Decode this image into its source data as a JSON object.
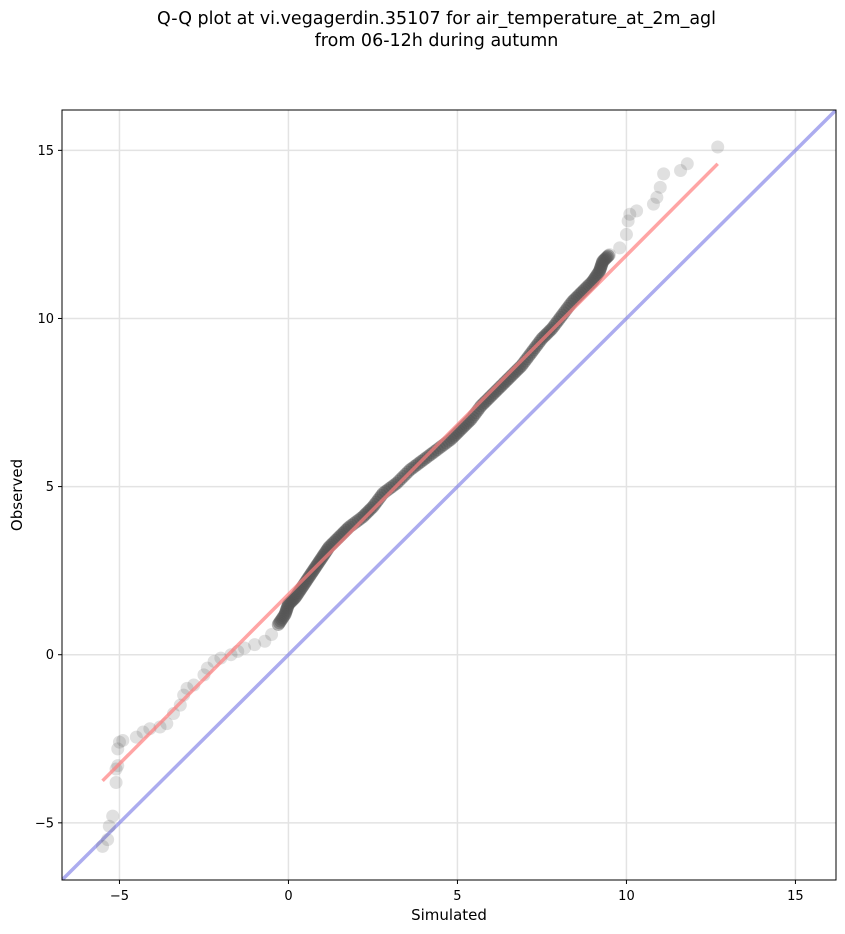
{
  "chart_data": {
    "type": "scatter",
    "title_line1": "Q-Q plot at vi.vegagerdin.35107 for air_temperature_at_2m_agl",
    "title_line2": "from 06-12h during autumn",
    "xlabel": "Simulated",
    "ylabel": "Observed",
    "xlim": [
      -6.7,
      16.2
    ],
    "ylim": [
      -6.7,
      16.2
    ],
    "xticks": [
      -5,
      0,
      5,
      10,
      15
    ],
    "yticks": [
      -5,
      0,
      5,
      10,
      15
    ],
    "xtick_labels": [
      "−5",
      "0",
      "5",
      "10",
      "15"
    ],
    "ytick_labels": [
      "−5",
      "0",
      "5",
      "10",
      "15"
    ],
    "grid": true,
    "point_color": "#555555",
    "fit_line_color": "#ff7f7f",
    "identity_line_color": "#8080e6",
    "fit_line": {
      "x": [
        -5.5,
        12.7
      ],
      "y": [
        -3.75,
        14.6
      ]
    },
    "identity_line": {
      "x": [
        -6.7,
        16.2
      ],
      "y": [
        -6.7,
        16.2
      ]
    },
    "points": [
      [
        -5.5,
        -5.7
      ],
      [
        -5.35,
        -5.5
      ],
      [
        -5.3,
        -5.1
      ],
      [
        -5.2,
        -4.8
      ],
      [
        -5.1,
        -3.8
      ],
      [
        -5.1,
        -3.4
      ],
      [
        -5.05,
        -3.3
      ],
      [
        -5.05,
        -2.8
      ],
      [
        -5.0,
        -2.6
      ],
      [
        -4.9,
        -2.55
      ],
      [
        -4.5,
        -2.45
      ],
      [
        -4.3,
        -2.3
      ],
      [
        -4.1,
        -2.2
      ],
      [
        -3.8,
        -2.15
      ],
      [
        -3.6,
        -2.05
      ],
      [
        -3.4,
        -1.75
      ],
      [
        -3.2,
        -1.5
      ],
      [
        -3.1,
        -1.2
      ],
      [
        -3.0,
        -1.0
      ],
      [
        -2.8,
        -0.9
      ],
      [
        -2.5,
        -0.6
      ],
      [
        -2.4,
        -0.4
      ],
      [
        -2.2,
        -0.2
      ],
      [
        -2.0,
        -0.1
      ],
      [
        -1.7,
        0.0
      ],
      [
        -1.5,
        0.1
      ],
      [
        -1.3,
        0.2
      ],
      [
        -1.0,
        0.3
      ],
      [
        -0.7,
        0.4
      ],
      [
        -0.5,
        0.6
      ],
      [
        -0.3,
        0.9
      ],
      [
        -0.1,
        1.2
      ],
      [
        0.0,
        1.5
      ],
      [
        0.2,
        1.7
      ],
      [
        0.4,
        2.0
      ],
      [
        0.6,
        2.3
      ],
      [
        0.8,
        2.6
      ],
      [
        1.0,
        2.9
      ],
      [
        1.2,
        3.2
      ],
      [
        1.5,
        3.5
      ],
      [
        1.8,
        3.8
      ],
      [
        2.2,
        4.1
      ],
      [
        2.5,
        4.4
      ],
      [
        2.8,
        4.8
      ],
      [
        3.2,
        5.1
      ],
      [
        3.6,
        5.5
      ],
      [
        4.0,
        5.8
      ],
      [
        4.4,
        6.1
      ],
      [
        4.8,
        6.4
      ],
      [
        5.1,
        6.7
      ],
      [
        5.4,
        7.0
      ],
      [
        5.7,
        7.4
      ],
      [
        6.0,
        7.7
      ],
      [
        6.3,
        8.0
      ],
      [
        6.6,
        8.3
      ],
      [
        6.9,
        8.6
      ],
      [
        7.2,
        9.0
      ],
      [
        7.5,
        9.4
      ],
      [
        7.8,
        9.7
      ],
      [
        8.1,
        10.1
      ],
      [
        8.4,
        10.5
      ],
      [
        8.7,
        10.8
      ],
      [
        9.0,
        11.1
      ],
      [
        9.2,
        11.4
      ],
      [
        9.3,
        11.7
      ],
      [
        9.5,
        11.9
      ],
      [
        9.8,
        12.1
      ],
      [
        10.0,
        12.5
      ],
      [
        10.05,
        12.9
      ],
      [
        10.1,
        13.1
      ],
      [
        10.3,
        13.2
      ],
      [
        10.8,
        13.4
      ],
      [
        10.9,
        13.6
      ],
      [
        11.0,
        13.9
      ],
      [
        11.1,
        14.3
      ],
      [
        11.6,
        14.4
      ],
      [
        11.8,
        14.6
      ],
      [
        12.7,
        15.1
      ]
    ]
  }
}
